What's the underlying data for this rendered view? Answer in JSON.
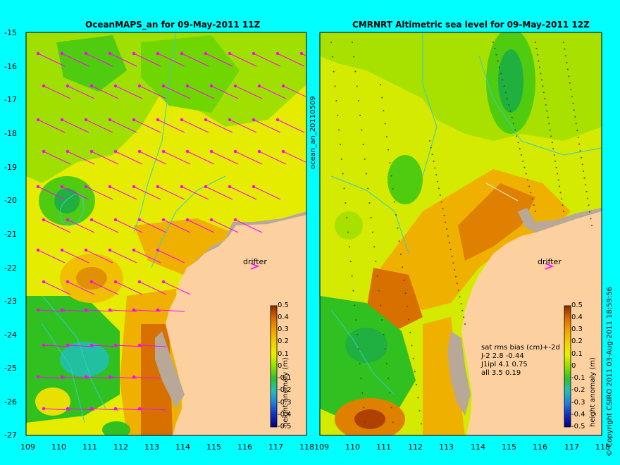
{
  "left_panel": {
    "title": "OceanMAPS_an for 09-May-2011 11Z",
    "label_drifter": "drifter",
    "y_ticks": [
      "-15",
      "-16",
      "-17",
      "-18",
      "-19",
      "-20",
      "-21",
      "-22",
      "-23",
      "-24",
      "-25",
      "-26",
      "-27"
    ],
    "x_ticks": [
      "109",
      "110",
      "111",
      "112",
      "113",
      "114",
      "115",
      "116",
      "117",
      "118"
    ],
    "colorbar_label": "height anomaly (m)"
  },
  "right_panel": {
    "title": "CMRNRT Altimetric sea level  for 09-May-2011 12Z",
    "side_label": "ocean_an_20110509",
    "label_drifter": "drifter",
    "x_ticks": [
      "109",
      "110",
      "111",
      "112",
      "113",
      "114",
      "115",
      "116",
      "117",
      "118"
    ],
    "stats_header": "sat rms bias (cm)+-2d",
    "stats_rows": [
      "J-2   2.8 -0.44",
      "J1ipl 4.1 0.75",
      "all 3.5 0.19"
    ],
    "colorbar_label": "height anomaly (m)",
    "credit": "© Copyright CSIRO 2011  03-Aug-2011 18:59:56"
  },
  "colorbar_ticks": [
    "0.5",
    "0.4",
    "0.3",
    "0.2",
    "0.1",
    "0",
    "-0.1",
    "-0.2",
    "-0.3",
    "-0.4",
    "-0.5"
  ],
  "colors": {
    "background": "#00ffff",
    "land": "#fdd0a0",
    "coast_shelf": "#b8a898",
    "arrow": "#ff00ff",
    "contour": "#33cccc"
  }
}
